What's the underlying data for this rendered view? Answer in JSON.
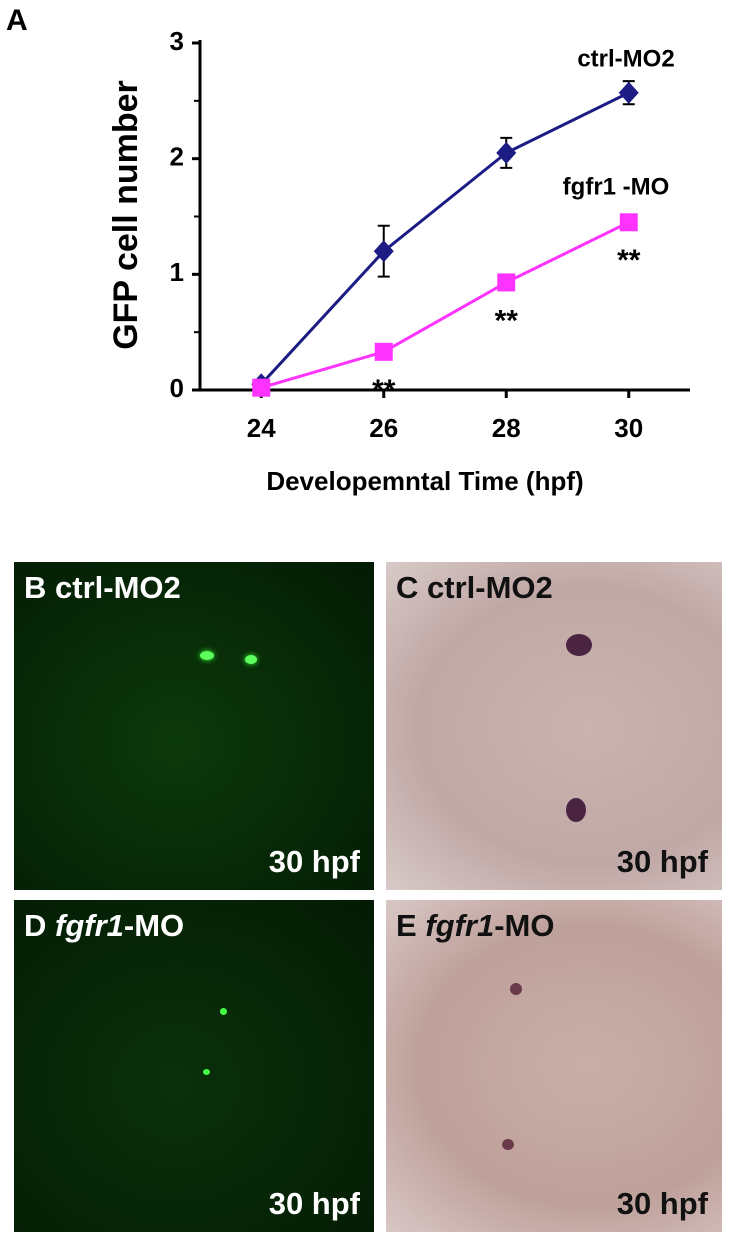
{
  "chart_data": {
    "type": "line",
    "panel_label": "A",
    "y_label": "GFP cell number",
    "x_label": "Developemntal Time (hpf)",
    "x": [
      24,
      26,
      28,
      30
    ],
    "xlim": [
      23,
      31
    ],
    "xticks": [
      24,
      26,
      28,
      30
    ],
    "ylim": [
      0,
      3
    ],
    "yticks": [
      0,
      1,
      2,
      3
    ],
    "y_minor_ticks": [
      0.5,
      1.5,
      2.5
    ],
    "series": [
      {
        "name": "ctrl-MO2",
        "color": "#1c1c84",
        "marker": "diamond",
        "values": [
          0.05,
          1.2,
          2.05,
          2.57
        ],
        "errors": [
          0.03,
          0.22,
          0.13,
          0.1
        ]
      },
      {
        "name": "fgfr1 -MO",
        "color": "#ff33ff",
        "marker": "square",
        "values": [
          0.02,
          0.33,
          0.93,
          1.45
        ]
      }
    ],
    "annotations": [
      {
        "text": "**",
        "x": 26
      },
      {
        "text": "**",
        "x": 28
      },
      {
        "text": "**",
        "x": 30
      }
    ]
  },
  "panels": [
    {
      "letter": "B",
      "label": "ctrl-MO2",
      "time": "30 hpf"
    },
    {
      "letter": "C",
      "label": "ctrl-MO2",
      "time": "30 hpf"
    },
    {
      "letter": "D",
      "gene": "fgfr1",
      "suffix": "-MO",
      "time": "30 hpf"
    },
    {
      "letter": "E",
      "gene": "fgfr1",
      "suffix": "-MO",
      "time": "30 hpf"
    }
  ]
}
